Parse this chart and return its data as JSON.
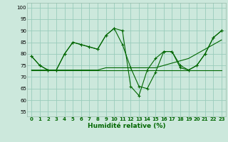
{
  "xlabel": "Humidité relative (%)",
  "bg_color": "#cce8dc",
  "grid_color": "#99ccbb",
  "line_color": "#006600",
  "xlim": [
    -0.5,
    23.5
  ],
  "ylim": [
    53,
    102
  ],
  "yticks": [
    55,
    60,
    65,
    70,
    75,
    80,
    85,
    90,
    95,
    100
  ],
  "xticks": [
    0,
    1,
    2,
    3,
    4,
    5,
    6,
    7,
    8,
    9,
    10,
    11,
    12,
    13,
    14,
    15,
    16,
    17,
    18,
    19,
    20,
    21,
    22,
    23
  ],
  "series": [
    [
      79,
      75,
      73,
      73,
      80,
      85,
      84,
      83,
      82,
      88,
      91,
      90,
      66,
      62,
      73,
      78,
      81,
      81,
      75,
      73,
      75,
      80,
      87,
      90
    ],
    [
      79,
      75,
      73,
      73,
      80,
      85,
      84,
      83,
      82,
      88,
      91,
      84,
      74,
      66,
      65,
      72,
      81,
      81,
      74,
      73,
      75,
      80,
      87,
      90
    ],
    [
      73,
      73,
      73,
      73,
      73,
      73,
      73,
      73,
      73,
      73,
      73,
      73,
      73,
      73,
      73,
      73,
      73,
      73,
      73,
      73,
      73,
      73,
      73,
      73
    ],
    [
      73,
      73,
      73,
      73,
      73,
      73,
      73,
      73,
      73,
      74,
      74,
      74,
      74,
      74,
      74,
      74,
      75,
      76,
      77,
      78,
      80,
      82,
      84,
      86
    ]
  ]
}
